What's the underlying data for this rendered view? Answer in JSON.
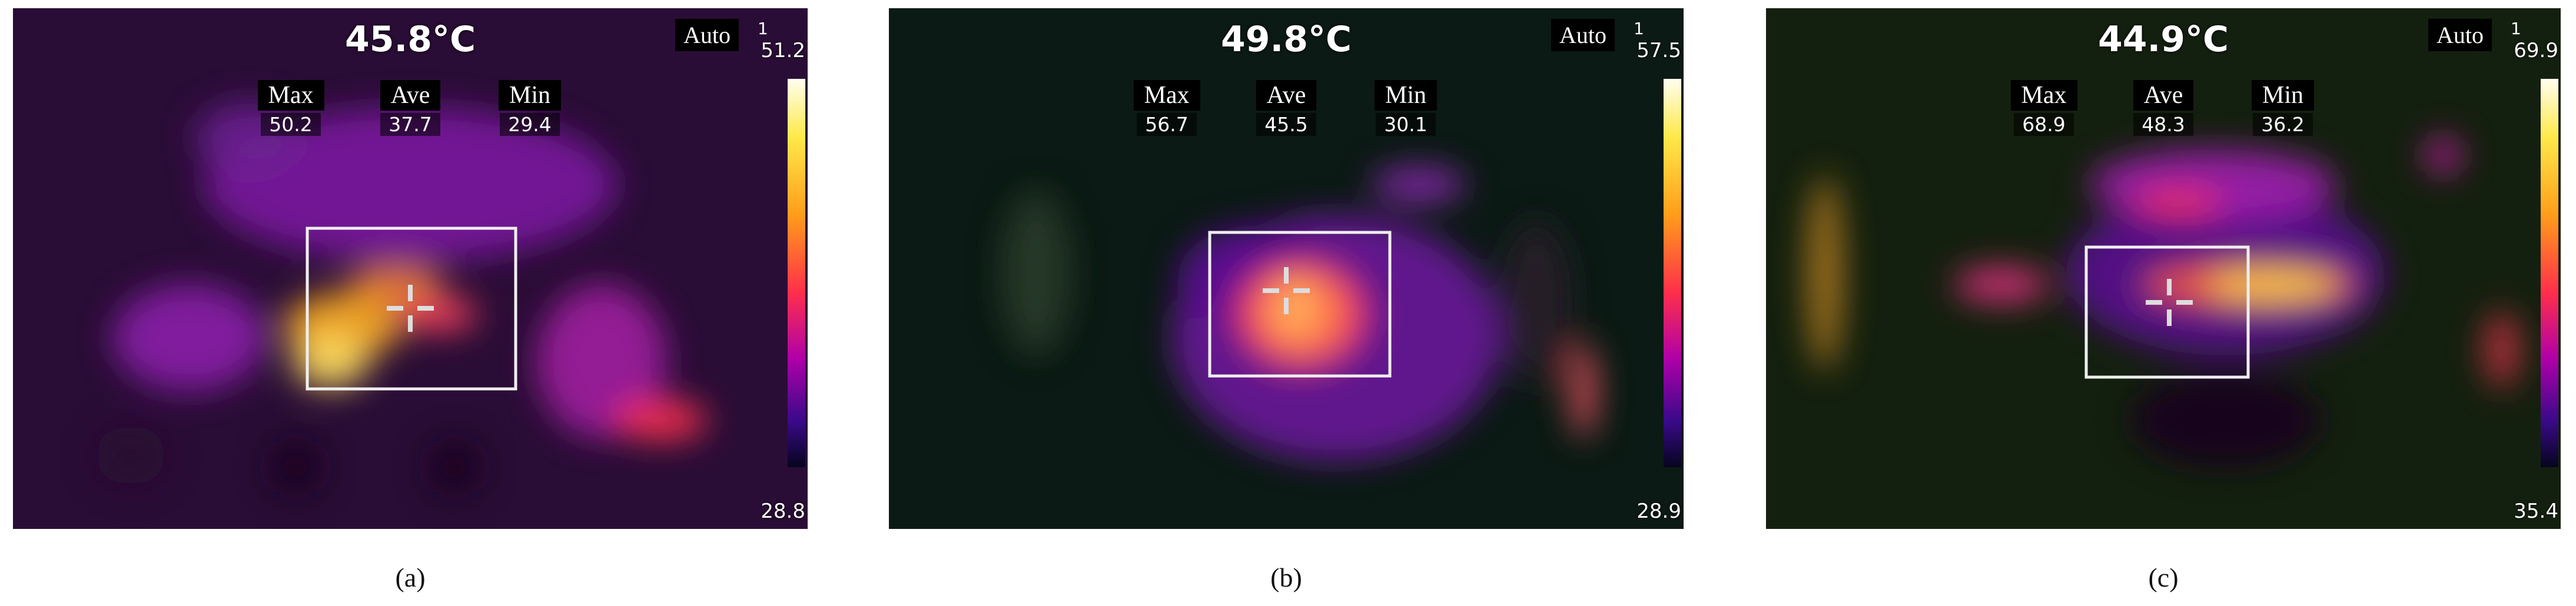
{
  "panels": [
    {
      "temperature": "45.8°C",
      "mode": "Auto",
      "index": "1",
      "scale_max": "51.2",
      "scale_min": "28.8",
      "stats": [
        {
          "label": "Max",
          "value": "50.2"
        },
        {
          "label": "Ave",
          "value": "37.7"
        },
        {
          "label": "Min",
          "value": "29.4"
        }
      ],
      "caption": "(a)"
    },
    {
      "temperature": "49.8°C",
      "mode": "Auto",
      "index": "1",
      "scale_max": "57.5",
      "scale_min": "28.9",
      "stats": [
        {
          "label": "Max",
          "value": "56.7"
        },
        {
          "label": "Ave",
          "value": "45.5"
        },
        {
          "label": "Min",
          "value": "30.1"
        }
      ],
      "caption": "(b)"
    },
    {
      "temperature": "44.9°C",
      "mode": "Auto",
      "index": "1",
      "scale_max": "69.9",
      "scale_min": "35.4",
      "stats": [
        {
          "label": "Max",
          "value": "68.9"
        },
        {
          "label": "Ave",
          "value": "48.3"
        },
        {
          "label": "Min",
          "value": "36.2"
        }
      ],
      "caption": "(c)"
    }
  ]
}
